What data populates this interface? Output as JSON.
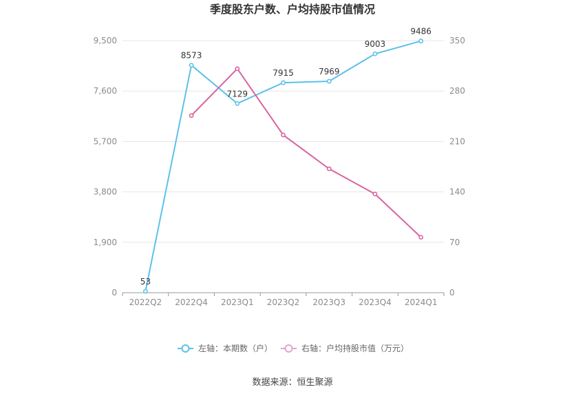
{
  "title": "季度股东户数、户均持股市值情况",
  "source": "数据来源：恒生聚源",
  "colors": {
    "left": "#5bc0eb",
    "right": "#d9649f",
    "grid": "#e6e6e6",
    "axis": "#999999"
  },
  "chart_data": {
    "type": "line",
    "title": "季度股东户数、户均持股市值情况",
    "categories": [
      "2022Q2",
      "2022Q4",
      "2023Q1",
      "2023Q2",
      "2023Q3",
      "2023Q4",
      "2024Q1"
    ],
    "left_axis": {
      "ylim": [
        0,
        9500
      ],
      "ticks": [
        0,
        1900,
        3800,
        5700,
        7600,
        9500
      ],
      "tick_labels": [
        "0",
        "1,900",
        "3,800",
        "5,700",
        "7,600",
        "9,500"
      ]
    },
    "right_axis": {
      "ylim": [
        0,
        350
      ],
      "ticks": [
        0,
        70,
        140,
        210,
        280,
        350
      ],
      "tick_labels": [
        "0",
        "70",
        "140",
        "210",
        "280",
        "350"
      ]
    },
    "series": [
      {
        "name": "左轴：本期数（户）",
        "axis": "left",
        "color": "#5bc0eb",
        "values": [
          53,
          8573,
          7129,
          7915,
          7969,
          9003,
          9486
        ],
        "labels": [
          "53",
          "8573",
          "7129",
          "7915",
          "7969",
          "9003",
          "9486"
        ]
      },
      {
        "name": "右轴：户均持股市值（万元）",
        "axis": "right",
        "color": "#d9649f",
        "values": [
          null,
          246,
          311,
          219,
          172,
          137,
          77
        ]
      }
    ],
    "grid": true,
    "legend_position": "bottom"
  }
}
